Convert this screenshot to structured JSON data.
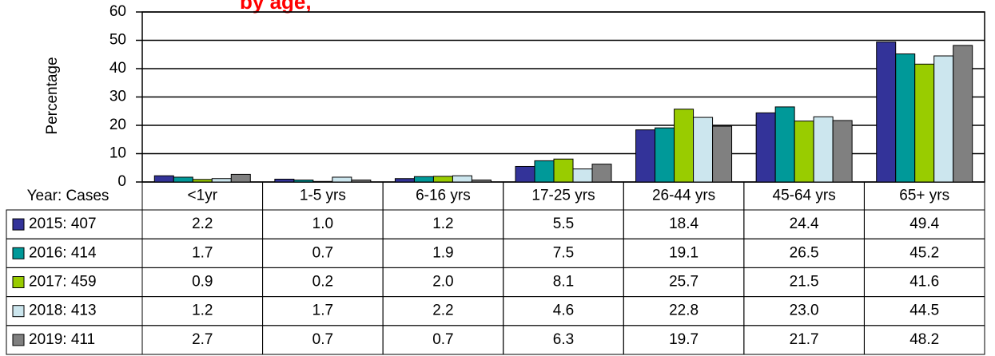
{
  "chart_data": {
    "type": "bar",
    "title": "by age,",
    "y_label": "Percentage",
    "table_header": "Year: Cases",
    "categories": [
      "<1yr",
      "1-5 yrs",
      "6-16 yrs",
      "17-25 yrs",
      "26-44 yrs",
      "45-64 yrs",
      "65+ yrs"
    ],
    "series": [
      {
        "name": "2015: 407",
        "color": "#333399",
        "values": [
          2.2,
          1.0,
          1.2,
          5.5,
          18.4,
          24.4,
          49.4
        ],
        "value_labels": [
          "2.2",
          "1.0",
          "1.2",
          "5.5",
          "18.4",
          "24.4",
          "49.4"
        ]
      },
      {
        "name": "2016: 414",
        "color": "#009999",
        "values": [
          1.7,
          0.7,
          1.9,
          7.5,
          19.1,
          26.5,
          45.2
        ],
        "value_labels": [
          "1.7",
          "0.7",
          "1.9",
          "7.5",
          "19.1",
          "26.5",
          "45.2"
        ]
      },
      {
        "name": "2017: 459",
        "color": "#99cc00",
        "values": [
          0.9,
          0.2,
          2.0,
          8.1,
          25.7,
          21.5,
          41.6
        ],
        "value_labels": [
          "0.9",
          "0.2",
          "2.0",
          "8.1",
          "25.7",
          "21.5",
          "41.6"
        ]
      },
      {
        "name": "2018: 413",
        "color": "#cce6ee",
        "values": [
          1.2,
          1.7,
          2.2,
          4.6,
          22.8,
          23.0,
          44.5
        ],
        "value_labels": [
          "1.2",
          "1.7",
          "2.2",
          "4.6",
          "22.8",
          "23.0",
          "44.5"
        ]
      },
      {
        "name": "2019: 411",
        "color": "#808080",
        "values": [
          2.7,
          0.7,
          0.7,
          6.3,
          19.7,
          21.7,
          48.2
        ],
        "value_labels": [
          "2.7",
          "0.7",
          "0.7",
          "6.3",
          "19.7",
          "21.7",
          "48.2"
        ]
      }
    ],
    "ylim": [
      0,
      60
    ],
    "yticks": [
      0,
      10,
      20,
      30,
      40,
      50,
      60
    ],
    "grid": true
  }
}
